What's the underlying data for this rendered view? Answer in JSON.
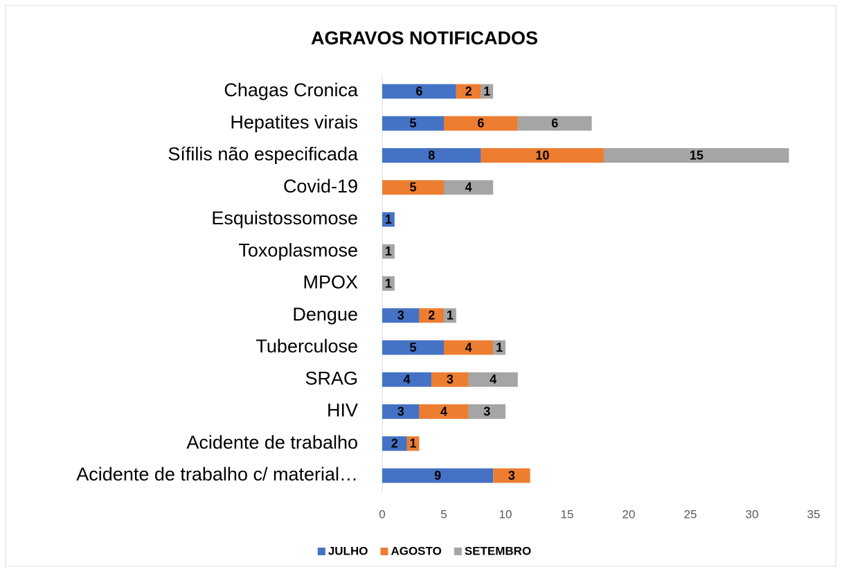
{
  "chart_data": {
    "type": "stacked-bar-horizontal",
    "title": "AGRAVOS NOTIFICADOS",
    "categories": [
      "Chagas Cronica",
      "Hepatites virais",
      "Sífilis não especificada",
      "Covid-19",
      "Esquistossomose",
      "Toxoplasmose",
      "MPOX",
      "Dengue",
      "Tuberculose",
      "SRAG",
      "HIV",
      "Acidente de trabalho",
      "Acidente de trabalho c/ material…"
    ],
    "series": [
      {
        "name": "JULHO",
        "color": "#4472c4",
        "values": [
          6,
          5,
          8,
          null,
          1,
          null,
          null,
          3,
          5,
          4,
          3,
          2,
          9
        ]
      },
      {
        "name": "AGOSTO",
        "color": "#ed7d31",
        "values": [
          2,
          6,
          10,
          5,
          null,
          null,
          null,
          2,
          4,
          3,
          4,
          1,
          3
        ]
      },
      {
        "name": "SETEMBRO",
        "color": "#a5a5a5",
        "values": [
          1,
          6,
          15,
          4,
          null,
          1,
          1,
          1,
          1,
          4,
          3,
          null,
          null
        ]
      }
    ],
    "xlim": [
      0,
      35
    ],
    "xticks": [
      0,
      5,
      10,
      15,
      20,
      25,
      30,
      35
    ],
    "legend": "bottom"
  }
}
